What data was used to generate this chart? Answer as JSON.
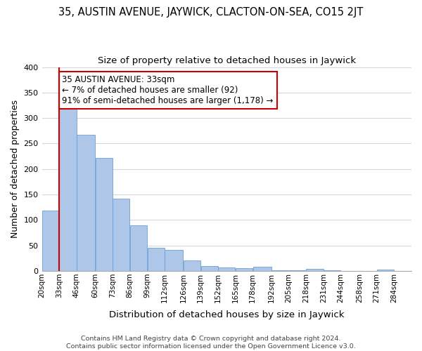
{
  "title": "35, AUSTIN AVENUE, JAYWICK, CLACTON-ON-SEA, CO15 2JT",
  "subtitle": "Size of property relative to detached houses in Jaywick",
  "xlabel": "Distribution of detached houses by size in Jaywick",
  "ylabel": "Number of detached properties",
  "bar_left_edges": [
    20,
    33,
    46,
    60,
    73,
    86,
    99,
    112,
    126,
    139,
    152,
    165,
    178,
    192,
    205,
    218,
    231,
    244,
    258,
    271
  ],
  "bar_widths": [
    13,
    13,
    14,
    13,
    13,
    13,
    13,
    14,
    13,
    13,
    13,
    13,
    14,
    13,
    13,
    13,
    13,
    14,
    13,
    13
  ],
  "bar_heights": [
    118,
    333,
    267,
    222,
    142,
    90,
    45,
    41,
    20,
    10,
    7,
    6,
    8,
    2,
    1,
    4,
    1,
    0,
    0,
    3
  ],
  "tick_labels": [
    "20sqm",
    "33sqm",
    "46sqm",
    "60sqm",
    "73sqm",
    "86sqm",
    "99sqm",
    "112sqm",
    "126sqm",
    "139sqm",
    "152sqm",
    "165sqm",
    "178sqm",
    "192sqm",
    "205sqm",
    "218sqm",
    "231sqm",
    "244sqm",
    "258sqm",
    "271sqm",
    "284sqm"
  ],
  "tick_positions": [
    20,
    33,
    46,
    60,
    73,
    86,
    99,
    112,
    126,
    139,
    152,
    165,
    178,
    192,
    205,
    218,
    231,
    244,
    258,
    271,
    284
  ],
  "bar_color": "#aec6e8",
  "bar_edge_color": "#6a9fd8",
  "property_line_x": 33,
  "property_line_color": "#cc0000",
  "ylim": [
    0,
    400
  ],
  "xlim": [
    20,
    297
  ],
  "annotation_title": "35 AUSTIN AVENUE: 33sqm",
  "annotation_line1": "← 7% of detached houses are smaller (92)",
  "annotation_line2": "91% of semi-detached houses are larger (1,178) →",
  "footer_line1": "Contains HM Land Registry data © Crown copyright and database right 2024.",
  "footer_line2": "Contains public sector information licensed under the Open Government Licence v3.0.",
  "grid_color": "#d0d8e8",
  "background_color": "#ffffff",
  "title_fontsize": 10.5,
  "subtitle_fontsize": 9.5,
  "axis_label_fontsize": 9,
  "tick_fontsize": 7.5,
  "footer_fontsize": 6.8,
  "annotation_fontsize": 8.5
}
